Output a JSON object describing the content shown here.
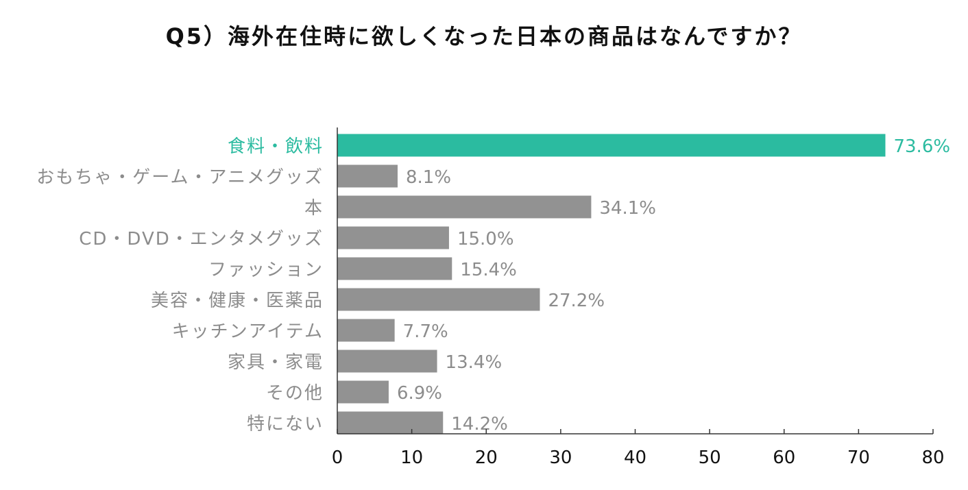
{
  "chart_data": {
    "type": "bar",
    "orientation": "horizontal",
    "title": "Q5）海外在住時に欲しくなった日本の商品はなんですか？",
    "categories": [
      "食料・飲料",
      "おもちゃ・ゲーム・アニメグッズ",
      "本",
      "CD・DVD・エンタメグッズ",
      "ファッション",
      "美容・健康・医薬品",
      "キッチンアイテム",
      "家具・家電",
      "その他",
      "特にない"
    ],
    "values": [
      73.6,
      8.1,
      34.1,
      15.0,
      15.4,
      27.2,
      7.7,
      13.4,
      6.9,
      14.2
    ],
    "value_labels": [
      "73.6%",
      "8.1%",
      "34.1%",
      "15.0%",
      "15.4%",
      "27.2%",
      "7.7%",
      "13.4%",
      "6.9%",
      "14.2%"
    ],
    "highlight_index": 0,
    "xlim": [
      0,
      80
    ],
    "xticks": [
      0,
      10,
      20,
      30,
      40,
      50,
      60,
      70,
      80
    ],
    "xtick_labels": [
      "0",
      "10",
      "20",
      "30",
      "40",
      "50",
      "60",
      "70",
      "80"
    ],
    "xlabel": "",
    "ylabel": "",
    "grid": false,
    "legend": "none",
    "colors": {
      "highlight": "#2bbba0",
      "bar": "#929292",
      "category_text": "#8c8c8c",
      "value_text": "#8c8c8c",
      "axis": "#333333"
    }
  }
}
